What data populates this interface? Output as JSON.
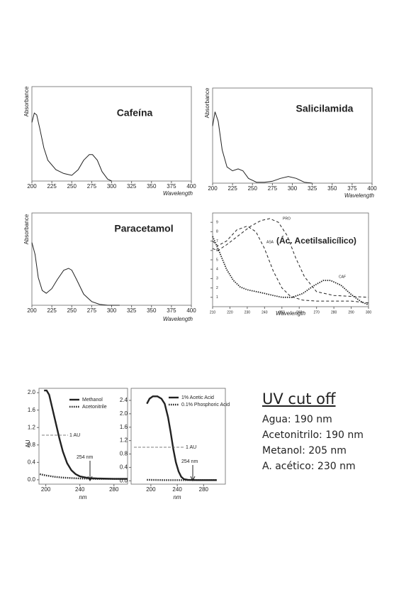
{
  "chart_data": [
    {
      "type": "line",
      "title": "Cafeína",
      "xlabel": "Wavelength",
      "ylabel": "Absorbance",
      "xlim": [
        200,
        400
      ],
      "xticks": [
        200,
        225,
        250,
        275,
        300,
        325,
        350,
        375,
        400
      ],
      "ylim": [
        0,
        1
      ],
      "series": [
        {
          "style": "solid",
          "x": [
            200,
            203,
            206,
            210,
            215,
            220,
            230,
            240,
            250,
            258,
            265,
            272,
            276,
            282,
            288,
            295,
            300
          ],
          "values": [
            0.62,
            0.72,
            0.7,
            0.55,
            0.35,
            0.22,
            0.12,
            0.08,
            0.06,
            0.12,
            0.22,
            0.28,
            0.28,
            0.22,
            0.1,
            0.02,
            0
          ]
        }
      ]
    },
    {
      "type": "line",
      "title": "Salicilamida",
      "xlabel": "Wavelength",
      "ylabel": "Absorbance",
      "xlim": [
        200,
        400
      ],
      "xticks": [
        200,
        225,
        250,
        275,
        300,
        325,
        350,
        375,
        400
      ],
      "ylim": [
        0,
        1
      ],
      "series": [
        {
          "style": "solid",
          "x": [
            200,
            203,
            207,
            212,
            218,
            225,
            232,
            238,
            245,
            255,
            265,
            275,
            285,
            295,
            305,
            315,
            325
          ],
          "values": [
            0.6,
            0.75,
            0.65,
            0.35,
            0.17,
            0.13,
            0.15,
            0.13,
            0.05,
            0.01,
            0.01,
            0.02,
            0.05,
            0.07,
            0.05,
            0.01,
            0
          ]
        }
      ]
    },
    {
      "type": "line",
      "title": "Paracetamol",
      "xlabel": "Wavelength",
      "ylabel": "Absorbance",
      "xlim": [
        200,
        400
      ],
      "xticks": [
        200,
        225,
        250,
        275,
        300,
        325,
        350,
        375,
        400
      ],
      "ylim": [
        0,
        1
      ],
      "series": [
        {
          "style": "solid",
          "x": [
            200,
            204,
            208,
            213,
            218,
            225,
            232,
            240,
            246,
            250,
            256,
            265,
            275,
            285,
            295,
            310
          ],
          "values": [
            0.68,
            0.55,
            0.3,
            0.16,
            0.13,
            0.18,
            0.28,
            0.38,
            0.4,
            0.38,
            0.28,
            0.12,
            0.04,
            0.01,
            0,
            0
          ]
        }
      ]
    },
    {
      "type": "line",
      "xlabel": "Wavelength",
      "annotation": "(Ác. Acetilsalicílico)",
      "xlim": [
        210,
        300
      ],
      "xticks": [
        210,
        220,
        230,
        240,
        250,
        260,
        270,
        280,
        290,
        300
      ],
      "ylim": [
        0,
        10
      ],
      "yticks": [
        1,
        2,
        3,
        4,
        5,
        6,
        7,
        8,
        9
      ],
      "series": [
        {
          "name": "PRO",
          "style": "dashed",
          "x": [
            210,
            213,
            218,
            225,
            232,
            238,
            243,
            248,
            253,
            258,
            263,
            270,
            280,
            290,
            300
          ],
          "values": [
            6.2,
            6.0,
            6.6,
            7.6,
            8.6,
            9.2,
            9.4,
            9.0,
            7.6,
            5.2,
            3.2,
            1.6,
            1.2,
            1.1,
            1.0
          ]
        },
        {
          "name": "ASA",
          "style": "dashed",
          "x": [
            210,
            213,
            218,
            224,
            230,
            235,
            240,
            245,
            250,
            255,
            262,
            270,
            280,
            290,
            300
          ],
          "values": [
            7.0,
            6.5,
            7.0,
            8.2,
            8.6,
            8.0,
            6.2,
            3.8,
            2.0,
            1.1,
            0.7,
            0.6,
            0.6,
            0.6,
            0.4
          ]
        },
        {
          "name": "CAF",
          "style": "dotted",
          "x": [
            210,
            214,
            218,
            222,
            226,
            230,
            238,
            245,
            250,
            256,
            262,
            268,
            274,
            278,
            284,
            290,
            296,
            300
          ],
          "values": [
            7.5,
            5.8,
            4.0,
            2.8,
            2.1,
            1.8,
            1.5,
            1.2,
            1.0,
            1.0,
            1.4,
            2.2,
            2.8,
            2.8,
            2.3,
            1.3,
            0.5,
            0.2
          ]
        }
      ]
    },
    {
      "type": "line",
      "xlabel": "nm",
      "ylabel": "AU",
      "annotations": [
        "1 AU",
        "254 nm"
      ],
      "xlim": [
        192,
        296
      ],
      "xticks": [
        200,
        240,
        280
      ],
      "ylim": [
        -0.1,
        2.1
      ],
      "yticks": [
        {
          "value": 0,
          "label": "0.0"
        },
        0.4,
        0.8,
        1.2,
        1.6,
        {
          "value": 2,
          "label": "2.0"
        }
      ],
      "series": [
        {
          "name": "Methanol",
          "style": "solid",
          "x": [
            198,
            201,
            204,
            207,
            210,
            213,
            216,
            220,
            225,
            230,
            235,
            240,
            250,
            260,
            280,
            296
          ],
          "values": [
            2.05,
            2.05,
            1.95,
            1.7,
            1.45,
            1.2,
            0.95,
            0.65,
            0.38,
            0.22,
            0.13,
            0.08,
            0.04,
            0.03,
            0.02,
            0.02
          ]
        },
        {
          "name": "Acetonitrile",
          "style": "dotted",
          "x": [
            193,
            200,
            210,
            220,
            240,
            260,
            280,
            296
          ],
          "values": [
            0.13,
            0.1,
            0.07,
            0.05,
            0.03,
            0.02,
            0.02,
            0.02
          ]
        }
      ]
    },
    {
      "type": "line",
      "xlabel": "nm",
      "annotations": [
        "1 AU",
        "254 nm"
      ],
      "xlim": [
        170,
        313
      ],
      "xticks": [
        200,
        240,
        280
      ],
      "ylim": [
        -0.1,
        2.76
      ],
      "yticks": [
        {
          "value": 0,
          "label": "0.0"
        },
        0.4,
        0.8,
        1.2,
        1.6,
        {
          "value": 2,
          "label": "2.0"
        },
        2.4
      ],
      "series": [
        {
          "name": "1% Acetic Acid",
          "style": "solid",
          "x": [
            194,
            198,
            203,
            210,
            216,
            221,
            226,
            230,
            234,
            238,
            242,
            246,
            250,
            256,
            270,
            300
          ],
          "values": [
            2.3,
            2.45,
            2.52,
            2.52,
            2.45,
            2.3,
            1.9,
            1.45,
            0.95,
            0.55,
            0.28,
            0.12,
            0.05,
            0.03,
            0.02,
            0.02
          ]
        },
        {
          "name": "0.1% Phosphoric Acid",
          "style": "dotted",
          "x": [
            194,
            220,
            250,
            280,
            300
          ],
          "values": [
            0.03,
            0.02,
            0.02,
            0.02,
            0.02
          ]
        }
      ]
    }
  ],
  "cutoff": {
    "title": "UV cut off",
    "lines": [
      "Agua: 190 nm",
      "Acetonitrilo: 190 nm",
      "Metanol: 205 nm",
      "A. acético: 230 nm"
    ]
  }
}
